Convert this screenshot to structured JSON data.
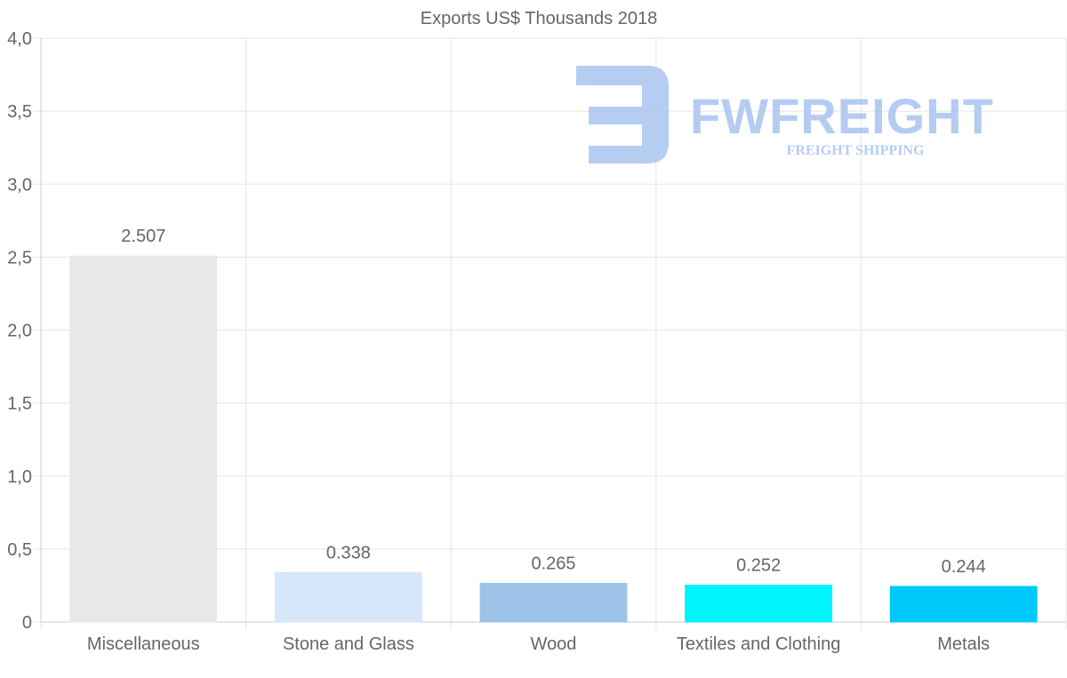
{
  "chart_data": {
    "type": "bar",
    "title": "Exports US$ Thousands 2018",
    "categories": [
      "Miscellaneous",
      "Stone and Glass",
      "Wood",
      "Textiles and Clothing",
      "Metals"
    ],
    "values": [
      2.507,
      0.338,
      0.265,
      0.252,
      0.244
    ],
    "value_labels": [
      "2.507",
      "0.338",
      "0.265",
      "0.252",
      "0.244"
    ],
    "colors": [
      "#e8e8e8",
      "#d6e7fa",
      "#9dc3e8",
      "#00f5fa",
      "#00c8fb"
    ],
    "ylim": [
      0,
      4
    ],
    "yticks": [
      0,
      0.5,
      1,
      1.5,
      2,
      2.5,
      3,
      3.5,
      4
    ],
    "ytick_labels": [
      "0",
      "0,5",
      "1,0",
      "1,5",
      "2,0",
      "2,5",
      "3,0",
      "3,5",
      "4,0"
    ],
    "xlabel": "",
    "ylabel": "",
    "grid": true
  },
  "watermark": {
    "brand": "FWFREIGHT",
    "tagline": "FREIGHT SHIPPING",
    "color": "#a9c4f0"
  }
}
